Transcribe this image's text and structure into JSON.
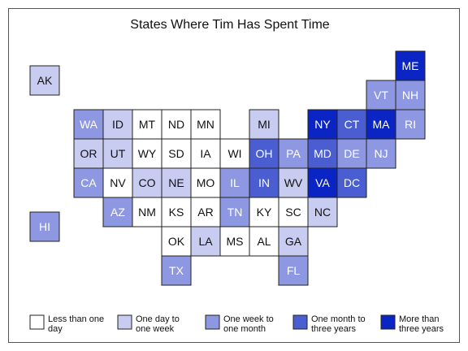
{
  "chart_data": {
    "type": "heatmap",
    "title": "States Where Tim Has Spent Time",
    "legend": {
      "placement": "bottom",
      "entries": [
        {
          "label_lines": [
            "Less than one",
            "day"
          ],
          "color": "#ffffff",
          "level": 0
        },
        {
          "label_lines": [
            "One day to",
            "one week"
          ],
          "color": "#c8ccf0",
          "level": 1
        },
        {
          "label_lines": [
            "One week to",
            "one month"
          ],
          "color": "#8e98e2",
          "level": 2
        },
        {
          "label_lines": [
            "One month to",
            "three years"
          ],
          "color": "#4a5ed2",
          "level": 3
        },
        {
          "label_lines": [
            "More than",
            "three years"
          ],
          "color": "#0a25c4",
          "level": 4
        }
      ]
    },
    "tiles": [
      {
        "state": "AK",
        "row": 0.5,
        "col": 0,
        "level": 1
      },
      {
        "state": "HI",
        "row": 5.5,
        "col": 0,
        "level": 2
      },
      {
        "state": "ME",
        "row": 0,
        "col": 12.5,
        "level": 4
      },
      {
        "state": "VT",
        "row": 1,
        "col": 11.5,
        "level": 2
      },
      {
        "state": "NH",
        "row": 1,
        "col": 12.5,
        "level": 2
      },
      {
        "state": "WA",
        "row": 2,
        "col": 1.5,
        "level": 2
      },
      {
        "state": "ID",
        "row": 2,
        "col": 2.5,
        "level": 1
      },
      {
        "state": "MT",
        "row": 2,
        "col": 3.5,
        "level": 0
      },
      {
        "state": "ND",
        "row": 2,
        "col": 4.5,
        "level": 0
      },
      {
        "state": "MN",
        "row": 2,
        "col": 5.5,
        "level": 0
      },
      {
        "state": "MI",
        "row": 2,
        "col": 7.5,
        "level": 1
      },
      {
        "state": "NY",
        "row": 2,
        "col": 9.5,
        "level": 4
      },
      {
        "state": "CT",
        "row": 2,
        "col": 10.5,
        "level": 3
      },
      {
        "state": "MA",
        "row": 2,
        "col": 11.5,
        "level": 4
      },
      {
        "state": "RI",
        "row": 2,
        "col": 12.5,
        "level": 2
      },
      {
        "state": "OR",
        "row": 3,
        "col": 1.5,
        "level": 1
      },
      {
        "state": "UT",
        "row": 3,
        "col": 2.5,
        "level": 1
      },
      {
        "state": "WY",
        "row": 3,
        "col": 3.5,
        "level": 0
      },
      {
        "state": "SD",
        "row": 3,
        "col": 4.5,
        "level": 0
      },
      {
        "state": "IA",
        "row": 3,
        "col": 5.5,
        "level": 0
      },
      {
        "state": "WI",
        "row": 3,
        "col": 6.5,
        "level": 0
      },
      {
        "state": "OH",
        "row": 3,
        "col": 7.5,
        "level": 3
      },
      {
        "state": "PA",
        "row": 3,
        "col": 8.5,
        "level": 2
      },
      {
        "state": "MD",
        "row": 3,
        "col": 9.5,
        "level": 3
      },
      {
        "state": "DE",
        "row": 3,
        "col": 10.5,
        "level": 2
      },
      {
        "state": "NJ",
        "row": 3,
        "col": 11.5,
        "level": 2
      },
      {
        "state": "CA",
        "row": 4,
        "col": 1.5,
        "level": 2
      },
      {
        "state": "NV",
        "row": 4,
        "col": 2.5,
        "level": 0
      },
      {
        "state": "CO",
        "row": 4,
        "col": 3.5,
        "level": 1
      },
      {
        "state": "NE",
        "row": 4,
        "col": 4.5,
        "level": 1
      },
      {
        "state": "MO",
        "row": 4,
        "col": 5.5,
        "level": 0
      },
      {
        "state": "IL",
        "row": 4,
        "col": 6.5,
        "level": 2
      },
      {
        "state": "IN",
        "row": 4,
        "col": 7.5,
        "level": 3
      },
      {
        "state": "WV",
        "row": 4,
        "col": 8.5,
        "level": 1
      },
      {
        "state": "VA",
        "row": 4,
        "col": 9.5,
        "level": 4
      },
      {
        "state": "DC",
        "row": 4,
        "col": 10.5,
        "level": 3
      },
      {
        "state": "AZ",
        "row": 5,
        "col": 2.5,
        "level": 2
      },
      {
        "state": "NM",
        "row": 5,
        "col": 3.5,
        "level": 0
      },
      {
        "state": "KS",
        "row": 5,
        "col": 4.5,
        "level": 0
      },
      {
        "state": "AR",
        "row": 5,
        "col": 5.5,
        "level": 0
      },
      {
        "state": "TN",
        "row": 5,
        "col": 6.5,
        "level": 2
      },
      {
        "state": "KY",
        "row": 5,
        "col": 7.5,
        "level": 0
      },
      {
        "state": "SC",
        "row": 5,
        "col": 8.5,
        "level": 0
      },
      {
        "state": "NC",
        "row": 5,
        "col": 9.5,
        "level": 1
      },
      {
        "state": "OK",
        "row": 6,
        "col": 4.5,
        "level": 0
      },
      {
        "state": "LA",
        "row": 6,
        "col": 5.5,
        "level": 1
      },
      {
        "state": "MS",
        "row": 6,
        "col": 6.5,
        "level": 0
      },
      {
        "state": "AL",
        "row": 6,
        "col": 7.5,
        "level": 0
      },
      {
        "state": "GA",
        "row": 6,
        "col": 8.5,
        "level": 1
      },
      {
        "state": "TX",
        "row": 7,
        "col": 4.5,
        "level": 2
      },
      {
        "state": "FL",
        "row": 7,
        "col": 8.5,
        "level": 2
      }
    ]
  }
}
